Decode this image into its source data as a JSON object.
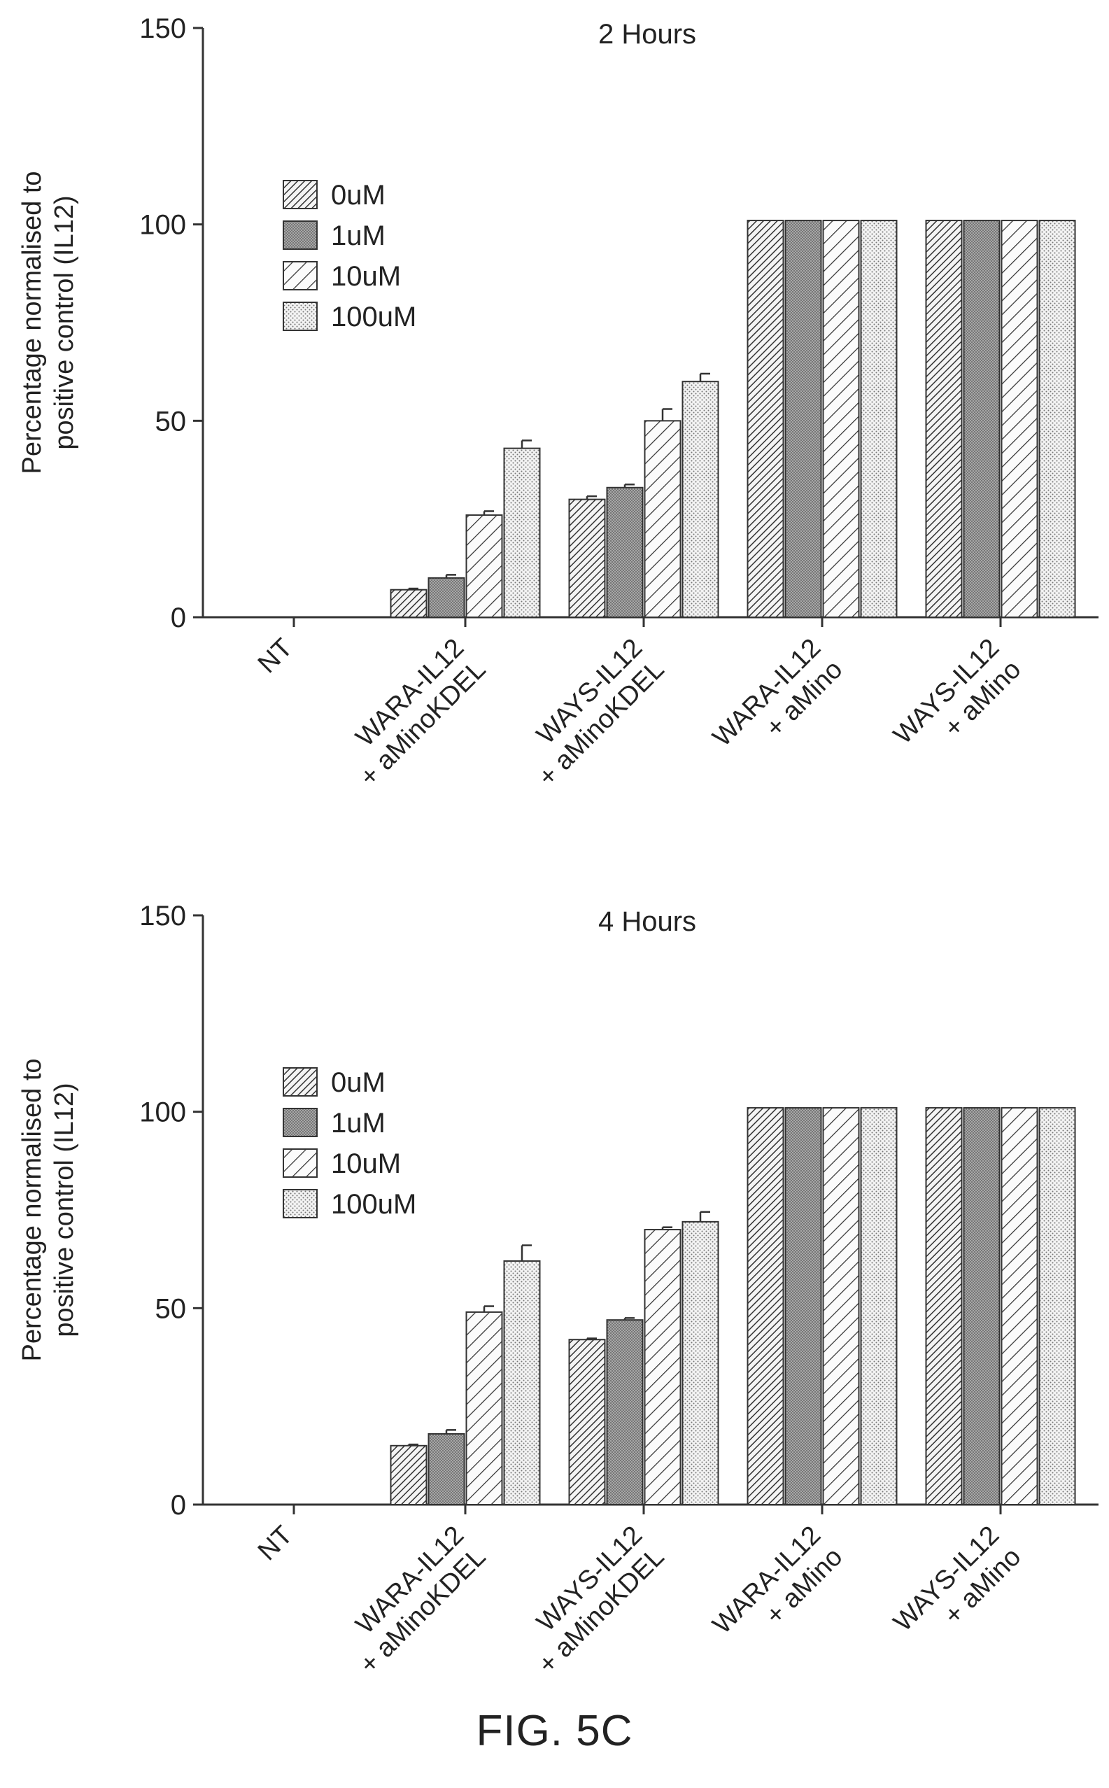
{
  "figure_label": "FIG. 5C",
  "colors": {
    "axis": "#333333",
    "bar_fill": "#f7f7f7",
    "dark_fill": "#9a9a9a",
    "stipple": "#6f6f6f",
    "text": "#222222"
  },
  "chart_data": [
    {
      "type": "bar",
      "title": "2 Hours",
      "ylabel": "Percentage normalised to positive control (IL12)",
      "ylabel_lines": [
        "Percentage normalised to",
        "positive control (IL12)"
      ],
      "xlabel": "",
      "ylim": [
        0,
        150
      ],
      "yticks": [
        0,
        50,
        100,
        150
      ],
      "grid": false,
      "legend_position": "upper-left",
      "categories": [
        "NT",
        "WARA-IL12 + aMinoKDEL",
        "WAYS-IL12 + aMinoKDEL",
        "WARA-IL12 + aMino",
        "WAYS-IL12 + aMino"
      ],
      "category_label_lines": [
        [
          "NT"
        ],
        [
          "WARA-IL12",
          "+ aMinoKDEL"
        ],
        [
          "WAYS-IL12",
          "+ aMinoKDEL"
        ],
        [
          "WARA-IL12",
          "+ aMino"
        ],
        [
          "WAYS-IL12",
          "+ aMino"
        ]
      ],
      "series": [
        {
          "name": "0uM",
          "pattern": "dense-hatch",
          "values": [
            0,
            7,
            30,
            101,
            101
          ],
          "errors": [
            0,
            0.3,
            0.8,
            0,
            0
          ]
        },
        {
          "name": "1uM",
          "pattern": "dark-stipple",
          "values": [
            0,
            10,
            33,
            101,
            101
          ],
          "errors": [
            0,
            0.8,
            0.8,
            0,
            0
          ]
        },
        {
          "name": "10uM",
          "pattern": "wide-hatch",
          "values": [
            0,
            26,
            50,
            101,
            101
          ],
          "errors": [
            0,
            1.0,
            3.0,
            0,
            0
          ]
        },
        {
          "name": "100uM",
          "pattern": "light-stipple",
          "values": [
            0,
            43,
            60,
            101,
            101
          ],
          "errors": [
            0,
            2.0,
            2.0,
            0,
            0
          ]
        }
      ]
    },
    {
      "type": "bar",
      "title": "4 Hours",
      "ylabel": "Percentage normalised to positive control (IL12)",
      "ylabel_lines": [
        "Percentage normalised to",
        "positive control (IL12)"
      ],
      "xlabel": "",
      "ylim": [
        0,
        150
      ],
      "yticks": [
        0,
        50,
        100,
        150
      ],
      "grid": false,
      "legend_position": "upper-left",
      "categories": [
        "NT",
        "WARA-IL12 + aMinoKDEL",
        "WAYS-IL12 + aMinoKDEL",
        "WARA-IL12 + aMino",
        "WAYS-IL12 + aMino"
      ],
      "category_label_lines": [
        [
          "NT"
        ],
        [
          "WARA-IL12",
          "+ aMinoKDEL"
        ],
        [
          "WAYS-IL12",
          "+ aMinoKDEL"
        ],
        [
          "WARA-IL12",
          "+ aMino"
        ],
        [
          "WAYS-IL12",
          "+ aMino"
        ]
      ],
      "series": [
        {
          "name": "0uM",
          "pattern": "dense-hatch",
          "values": [
            0,
            15,
            42,
            101,
            101
          ],
          "errors": [
            0,
            0.3,
            0.3,
            0,
            0
          ]
        },
        {
          "name": "1uM",
          "pattern": "dark-stipple",
          "values": [
            0,
            18,
            47,
            101,
            101
          ],
          "errors": [
            0,
            1.0,
            0.5,
            0,
            0
          ]
        },
        {
          "name": "10uM",
          "pattern": "wide-hatch",
          "values": [
            0,
            49,
            70,
            101,
            101
          ],
          "errors": [
            0,
            1.5,
            0.6,
            0,
            0
          ]
        },
        {
          "name": "100uM",
          "pattern": "light-stipple",
          "values": [
            0,
            62,
            72,
            101,
            101
          ],
          "errors": [
            0,
            4.0,
            2.5,
            0,
            0
          ]
        }
      ]
    }
  ]
}
